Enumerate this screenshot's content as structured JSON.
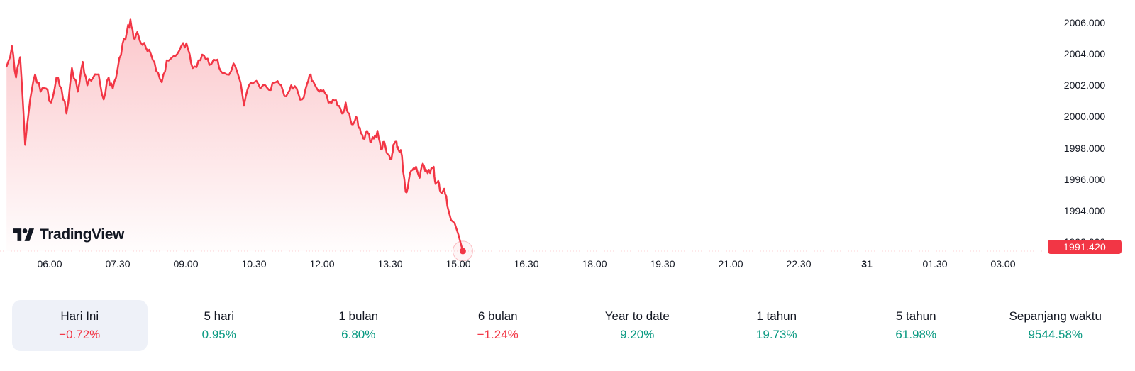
{
  "brand": {
    "logo_text": "TradingView"
  },
  "colors": {
    "line": "#f23645",
    "up": "#089981",
    "down": "#f23645",
    "text": "#131722",
    "area_top": "rgba(242,54,69,0.30)",
    "area_bottom": "rgba(242,54,69,0.01)",
    "badge_bg": "#f23645",
    "badge_text": "#ffffff",
    "pill_bg": "#eef1f8"
  },
  "chart_data": {
    "type": "area",
    "title": "",
    "xlabel": "",
    "ylabel": "",
    "grid": false,
    "legend": false,
    "last_price": 1991.42,
    "last_price_label": "1991.420",
    "y_axis": {
      "range": [
        1991.0,
        2007.4
      ],
      "ticks": [
        {
          "value": 2006,
          "label": "2006.000"
        },
        {
          "value": 2004,
          "label": "2004.000"
        },
        {
          "value": 2002,
          "label": "2002.000"
        },
        {
          "value": 2000,
          "label": "2000.000"
        },
        {
          "value": 1998,
          "label": "1998.000"
        },
        {
          "value": 1996,
          "label": "1996.000"
        },
        {
          "value": 1994,
          "label": "1994.000"
        },
        {
          "value": 1992,
          "label": "1992.000"
        }
      ]
    },
    "x_axis": {
      "unit": "hours",
      "visible_range": [
        5.0,
        27.9
      ],
      "ticks": [
        {
          "t": 6,
          "label": "06.00"
        },
        {
          "t": 7.5,
          "label": "07.30"
        },
        {
          "t": 9,
          "label": "09.00"
        },
        {
          "t": 10.5,
          "label": "10.30"
        },
        {
          "t": 12,
          "label": "12.00"
        },
        {
          "t": 13.5,
          "label": "13.30"
        },
        {
          "t": 15,
          "label": "15.00"
        },
        {
          "t": 16.5,
          "label": "16.30"
        },
        {
          "t": 18,
          "label": "18.00"
        },
        {
          "t": 19.5,
          "label": "19.30"
        },
        {
          "t": 21,
          "label": "21.00"
        },
        {
          "t": 22.5,
          "label": "22.30"
        },
        {
          "t": 24,
          "label": "31",
          "bold": true
        },
        {
          "t": 25.5,
          "label": "01.30"
        },
        {
          "t": 27,
          "label": "03.00"
        }
      ]
    },
    "series": [
      [
        5.05,
        2003.2
      ],
      [
        5.17,
        2004.5
      ],
      [
        5.26,
        2002.5
      ],
      [
        5.35,
        2003.8
      ],
      [
        5.46,
        1998.2
      ],
      [
        5.57,
        2001.1
      ],
      [
        5.68,
        2002.7
      ],
      [
        5.8,
        2001.6
      ],
      [
        5.92,
        2001.8
      ],
      [
        6.03,
        2000.9
      ],
      [
        6.15,
        2002.5
      ],
      [
        6.26,
        2001.8
      ],
      [
        6.37,
        2000.2
      ],
      [
        6.49,
        2003.1
      ],
      [
        6.62,
        2001.6
      ],
      [
        6.73,
        2003.5
      ],
      [
        6.83,
        2002.0
      ],
      [
        6.96,
        2002.5
      ],
      [
        7.08,
        2002.7
      ],
      [
        7.19,
        2001.1
      ],
      [
        7.3,
        2002.5
      ],
      [
        7.39,
        2001.8
      ],
      [
        7.5,
        2003.1
      ],
      [
        7.61,
        2004.7
      ],
      [
        7.7,
        2005.4
      ],
      [
        7.78,
        2006.2
      ],
      [
        7.85,
        2005.0
      ],
      [
        7.93,
        2005.4
      ],
      [
        8.01,
        2004.7
      ],
      [
        8.12,
        2004.4
      ],
      [
        8.23,
        2004.0
      ],
      [
        8.35,
        2002.9
      ],
      [
        8.47,
        2002.2
      ],
      [
        8.58,
        2003.6
      ],
      [
        8.7,
        2003.8
      ],
      [
        8.81,
        2004.0
      ],
      [
        8.94,
        2004.7
      ],
      [
        9.05,
        2004.3
      ],
      [
        9.15,
        2003.1
      ],
      [
        9.28,
        2003.6
      ],
      [
        9.4,
        2003.9
      ],
      [
        9.52,
        2003.3
      ],
      [
        9.66,
        2003.6
      ],
      [
        9.77,
        2002.9
      ],
      [
        9.9,
        2002.7
      ],
      [
        10.05,
        2003.4
      ],
      [
        10.17,
        2002.5
      ],
      [
        10.28,
        2000.7
      ],
      [
        10.39,
        2002.0
      ],
      [
        10.51,
        2002.2
      ],
      [
        10.64,
        2001.8
      ],
      [
        10.75,
        2002.0
      ],
      [
        10.87,
        2001.7
      ],
      [
        10.98,
        2002.2
      ],
      [
        11.1,
        2002.0
      ],
      [
        11.21,
        2001.3
      ],
      [
        11.32,
        2002.0
      ],
      [
        11.44,
        2001.8
      ],
      [
        11.56,
        2001.1
      ],
      [
        11.67,
        2002.1
      ],
      [
        11.75,
        2002.7
      ],
      [
        11.83,
        2002.1
      ],
      [
        11.94,
        2001.6
      ],
      [
        12.03,
        2001.7
      ],
      [
        12.14,
        2000.9
      ],
      [
        12.24,
        2001.1
      ],
      [
        12.34,
        2000.7
      ],
      [
        12.44,
        2000.2
      ],
      [
        12.52,
        2000.9
      ],
      [
        12.6,
        2000.2
      ],
      [
        12.68,
        1999.5
      ],
      [
        12.75,
        2000.0
      ],
      [
        12.83,
        1999.3
      ],
      [
        12.91,
        1998.6
      ],
      [
        12.99,
        1999.1
      ],
      [
        13.06,
        1998.4
      ],
      [
        13.14,
        1998.6
      ],
      [
        13.22,
        1999.1
      ],
      [
        13.3,
        1997.9
      ],
      [
        13.37,
        1998.4
      ],
      [
        13.45,
        1997.6
      ],
      [
        13.53,
        1997.3
      ],
      [
        13.57,
        1998.2
      ],
      [
        13.64,
        1998.4
      ],
      [
        13.68,
        1997.9
      ],
      [
        13.76,
        1997.5
      ],
      [
        13.84,
        1995.2
      ],
      [
        13.91,
        1995.9
      ],
      [
        13.99,
        1996.6
      ],
      [
        14.07,
        1996.8
      ],
      [
        14.15,
        1996.1
      ],
      [
        14.22,
        1997.0
      ],
      [
        14.3,
        1996.6
      ],
      [
        14.38,
        1996.4
      ],
      [
        14.46,
        1996.8
      ],
      [
        14.5,
        1995.7
      ],
      [
        14.56,
        1995.9
      ],
      [
        14.61,
        1995.2
      ],
      [
        14.69,
        1995.4
      ],
      [
        14.76,
        1994.3
      ],
      [
        14.84,
        1993.4
      ],
      [
        14.92,
        1993.2
      ],
      [
        15.0,
        1992.5
      ],
      [
        15.1,
        1991.42
      ]
    ]
  },
  "stats": {
    "items": [
      {
        "label": "Hari Ini",
        "value": "−0.72%",
        "direction": "down",
        "selected": true
      },
      {
        "label": "5 hari",
        "value": "0.95%",
        "direction": "up",
        "selected": false
      },
      {
        "label": "1 bulan",
        "value": "6.80%",
        "direction": "up",
        "selected": false
      },
      {
        "label": "6 bulan",
        "value": "−1.24%",
        "direction": "down",
        "selected": false
      },
      {
        "label": "Year to date",
        "value": "9.20%",
        "direction": "up",
        "selected": false
      },
      {
        "label": "1 tahun",
        "value": "19.73%",
        "direction": "up",
        "selected": false
      },
      {
        "label": "5 tahun",
        "value": "61.98%",
        "direction": "up",
        "selected": false
      },
      {
        "label": "Sepanjang waktu",
        "value": "9544.58%",
        "direction": "up",
        "selected": false
      }
    ]
  }
}
